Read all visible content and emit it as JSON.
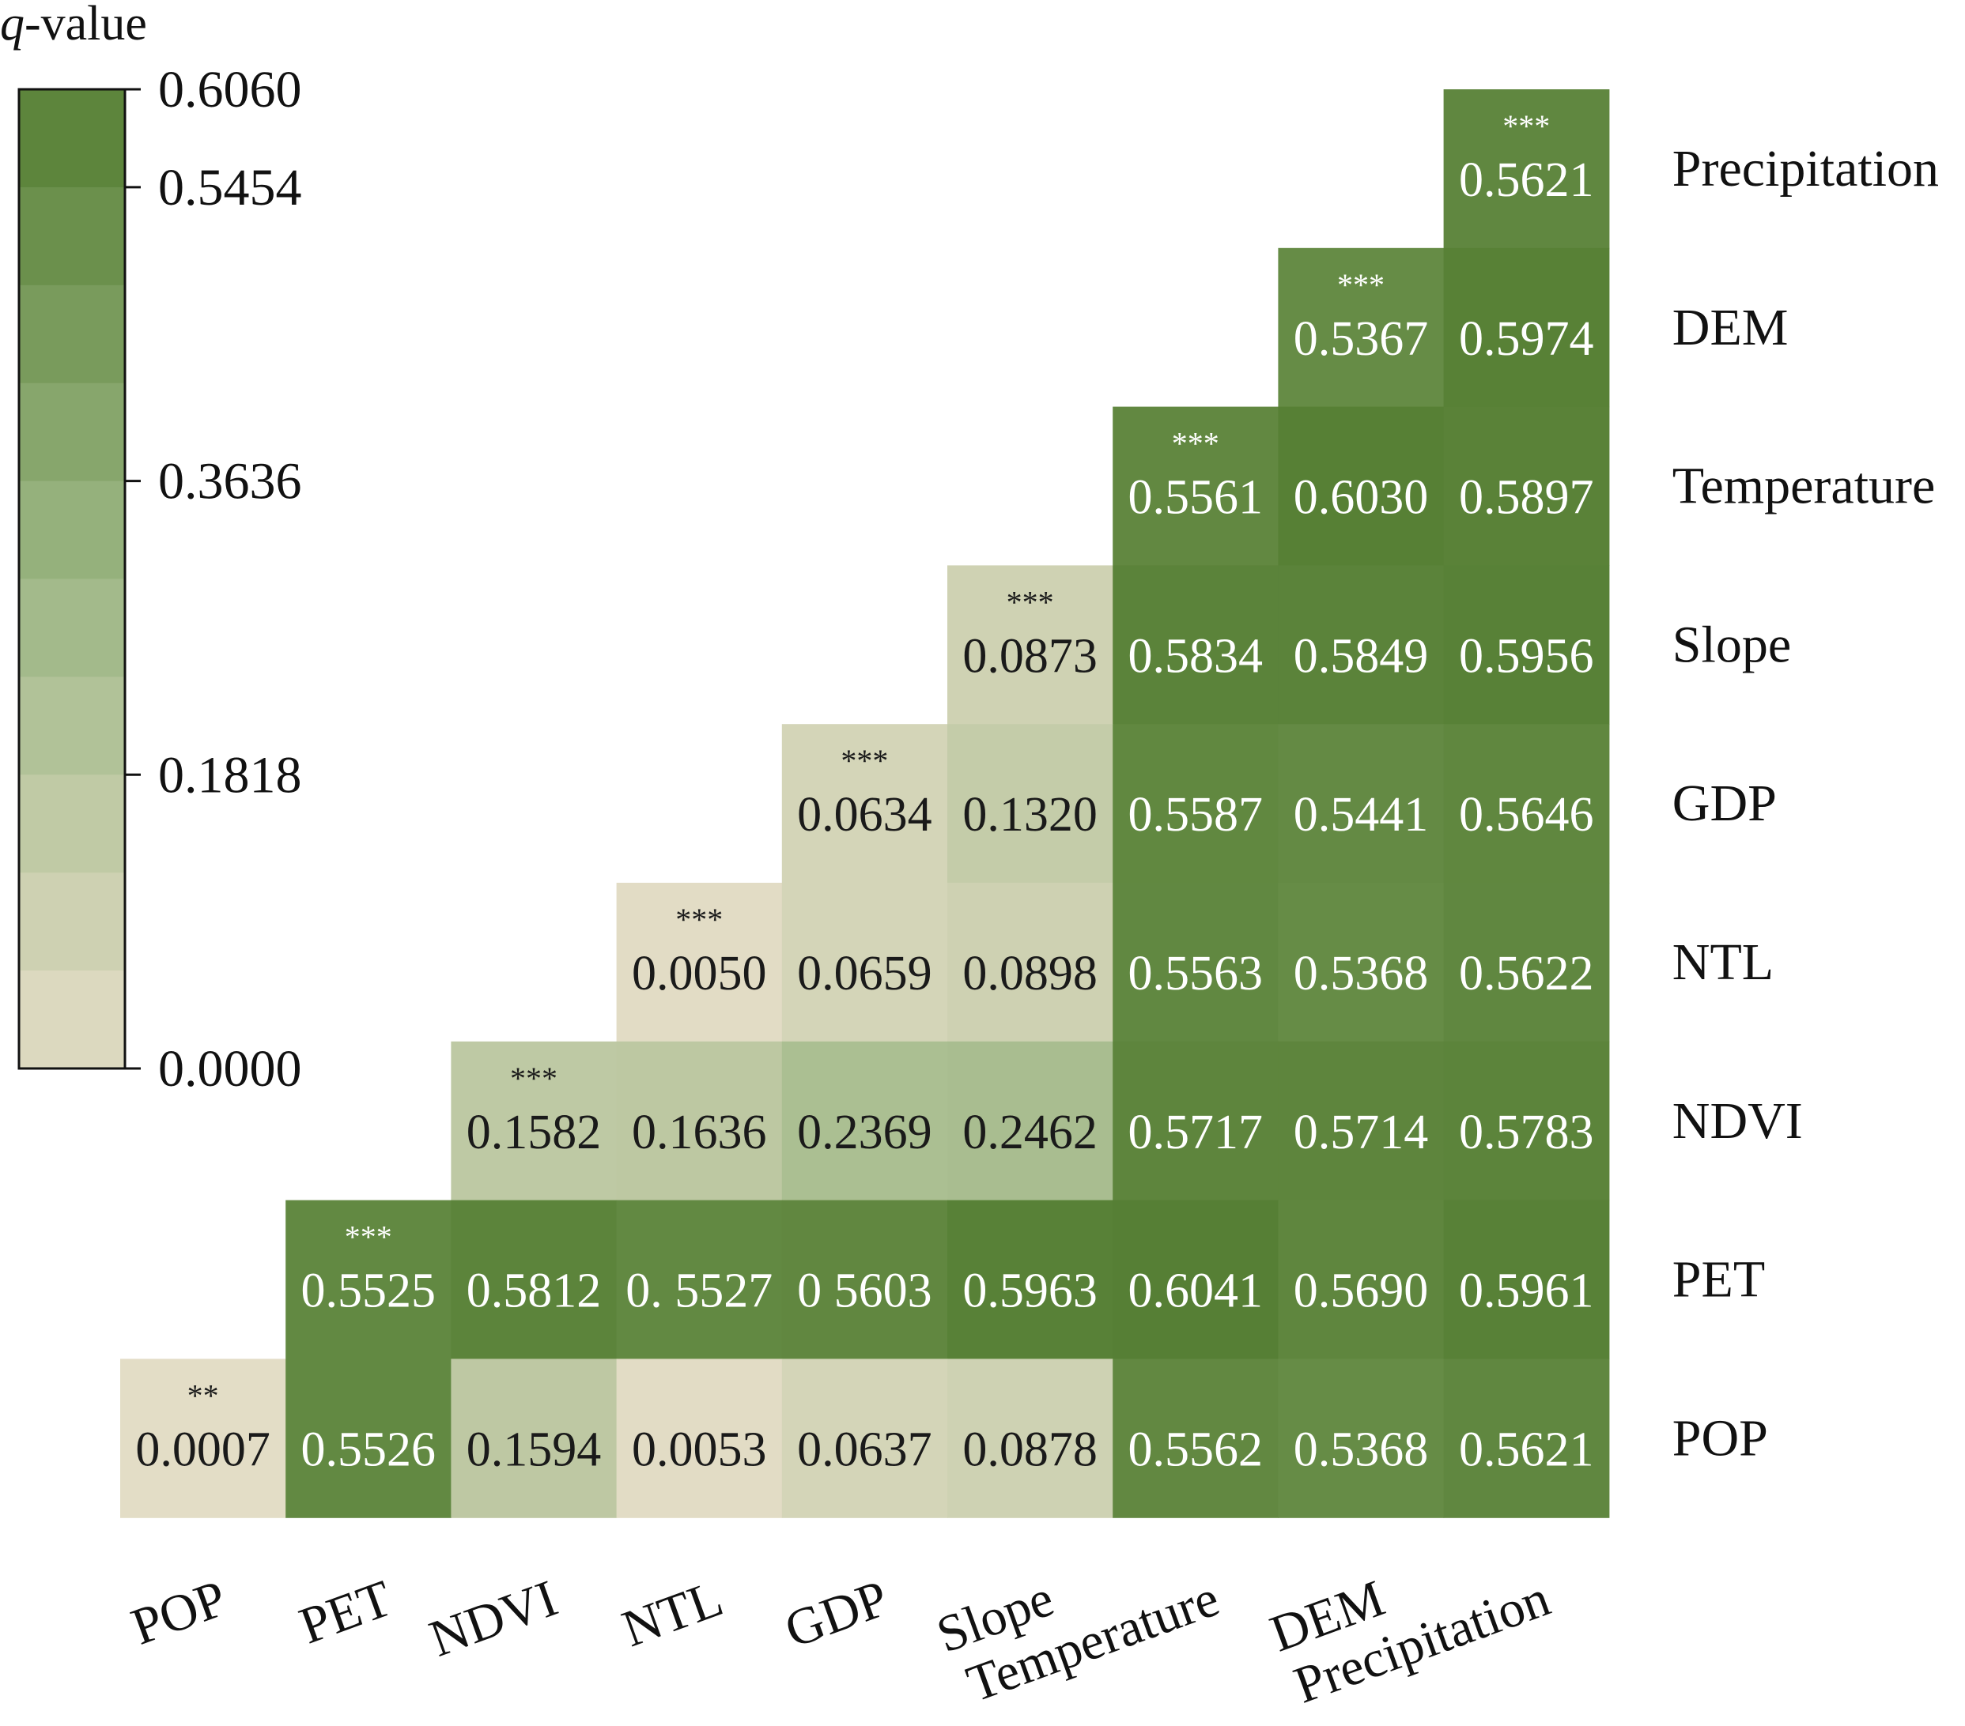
{
  "chart_data": {
    "type": "heatmap",
    "title": "",
    "legend_title_var": "q",
    "legend_title_rest": "-value",
    "legend_ticks": [
      "0.6060",
      "0.5454",
      "0.3636",
      "0.1818",
      "0.0000"
    ],
    "legend_tick_values": [
      0.606,
      0.5454,
      0.3636,
      0.1818,
      0.0
    ],
    "vmin": 0.0,
    "vmax": 0.606,
    "color_low": "#e3ddc6",
    "color_mid": "#9cb684",
    "color_high": "#567f34",
    "columns": [
      "POP",
      "PET",
      "NDVI",
      "NTL",
      "GDP",
      "Slope",
      "Temperature",
      "DEM",
      "Precipitation"
    ],
    "rows": [
      "Precipitation",
      "DEM",
      "Temperature",
      "Slope",
      "GDP",
      "NTL",
      "NDVI",
      "PET",
      "POP"
    ],
    "cells": [
      {
        "row": "Precipitation",
        "col": "Precipitation",
        "value": 0.5621,
        "text": "0.5621",
        "sig": "***"
      },
      {
        "row": "DEM",
        "col": "DEM",
        "value": 0.5367,
        "text": "0.5367",
        "sig": "***"
      },
      {
        "row": "DEM",
        "col": "Precipitation",
        "value": 0.5974,
        "text": "0.5974"
      },
      {
        "row": "Temperature",
        "col": "Temperature",
        "value": 0.5561,
        "text": "0.5561",
        "sig": "***"
      },
      {
        "row": "Temperature",
        "col": "DEM",
        "value": 0.603,
        "text": "0.6030"
      },
      {
        "row": "Temperature",
        "col": "Precipitation",
        "value": 0.5897,
        "text": "0.5897"
      },
      {
        "row": "Slope",
        "col": "Slope",
        "value": 0.0873,
        "text": "0.0873",
        "sig": "***"
      },
      {
        "row": "Slope",
        "col": "Temperature",
        "value": 0.5834,
        "text": "0.5834"
      },
      {
        "row": "Slope",
        "col": "DEM",
        "value": 0.5849,
        "text": "0.5849"
      },
      {
        "row": "Slope",
        "col": "Precipitation",
        "value": 0.5956,
        "text": "0.5956"
      },
      {
        "row": "GDP",
        "col": "GDP",
        "value": 0.0634,
        "text": "0.0634",
        "sig": "***"
      },
      {
        "row": "GDP",
        "col": "Slope",
        "value": 0.132,
        "text": "0.1320"
      },
      {
        "row": "GDP",
        "col": "Temperature",
        "value": 0.5587,
        "text": "0.5587"
      },
      {
        "row": "GDP",
        "col": "DEM",
        "value": 0.5441,
        "text": "0.5441"
      },
      {
        "row": "GDP",
        "col": "Precipitation",
        "value": 0.5646,
        "text": "0.5646"
      },
      {
        "row": "NTL",
        "col": "NTL",
        "value": 0.005,
        "text": "0.0050",
        "sig": "***"
      },
      {
        "row": "NTL",
        "col": "GDP",
        "value": 0.0659,
        "text": "0.0659"
      },
      {
        "row": "NTL",
        "col": "Slope",
        "value": 0.0898,
        "text": "0.0898"
      },
      {
        "row": "NTL",
        "col": "Temperature",
        "value": 0.5563,
        "text": "0.5563"
      },
      {
        "row": "NTL",
        "col": "DEM",
        "value": 0.5368,
        "text": "0.5368"
      },
      {
        "row": "NTL",
        "col": "Precipitation",
        "value": 0.5622,
        "text": "0.5622"
      },
      {
        "row": "NDVI",
        "col": "NDVI",
        "value": 0.1582,
        "text": "0.1582",
        "sig": "***"
      },
      {
        "row": "NDVI",
        "col": "NTL",
        "value": 0.1636,
        "text": "0.1636"
      },
      {
        "row": "NDVI",
        "col": "GDP",
        "value": 0.2369,
        "text": "0.2369"
      },
      {
        "row": "NDVI",
        "col": "Slope",
        "value": 0.2462,
        "text": "0.2462"
      },
      {
        "row": "NDVI",
        "col": "Temperature",
        "value": 0.5717,
        "text": "0.5717"
      },
      {
        "row": "NDVI",
        "col": "DEM",
        "value": 0.5714,
        "text": "0.5714"
      },
      {
        "row": "NDVI",
        "col": "Precipitation",
        "value": 0.5783,
        "text": "0.5783"
      },
      {
        "row": "PET",
        "col": "PET",
        "value": 0.5525,
        "text": "0.5525",
        "sig": "***"
      },
      {
        "row": "PET",
        "col": "NDVI",
        "value": 0.5812,
        "text": "0.5812"
      },
      {
        "row": "PET",
        "col": "NTL",
        "value": 0.5527,
        "text": "0. 5527"
      },
      {
        "row": "PET",
        "col": "GDP",
        "value": 0.5603,
        "text": "0 5603"
      },
      {
        "row": "PET",
        "col": "Slope",
        "value": 0.5963,
        "text": "0.5963"
      },
      {
        "row": "PET",
        "col": "Temperature",
        "value": 0.6041,
        "text": "0.6041"
      },
      {
        "row": "PET",
        "col": "DEM",
        "value": 0.569,
        "text": "0.5690"
      },
      {
        "row": "PET",
        "col": "Precipitation",
        "value": 0.5961,
        "text": "0.5961"
      },
      {
        "row": "POP",
        "col": "POP",
        "value": 0.0007,
        "text": "0.0007",
        "sig": "**"
      },
      {
        "row": "POP",
        "col": "PET",
        "value": 0.5526,
        "text": "0.5526"
      },
      {
        "row": "POP",
        "col": "NDVI",
        "value": 0.1594,
        "text": "0.1594"
      },
      {
        "row": "POP",
        "col": "NTL",
        "value": 0.0053,
        "text": "0.0053"
      },
      {
        "row": "POP",
        "col": "GDP",
        "value": 0.0637,
        "text": "0.0637"
      },
      {
        "row": "POP",
        "col": "Slope",
        "value": 0.0878,
        "text": "0.0878"
      },
      {
        "row": "POP",
        "col": "Temperature",
        "value": 0.5562,
        "text": "0.5562"
      },
      {
        "row": "POP",
        "col": "DEM",
        "value": 0.5368,
        "text": "0.5368"
      },
      {
        "row": "POP",
        "col": "Precipitation",
        "value": 0.5621,
        "text": "0.5621"
      }
    ]
  }
}
